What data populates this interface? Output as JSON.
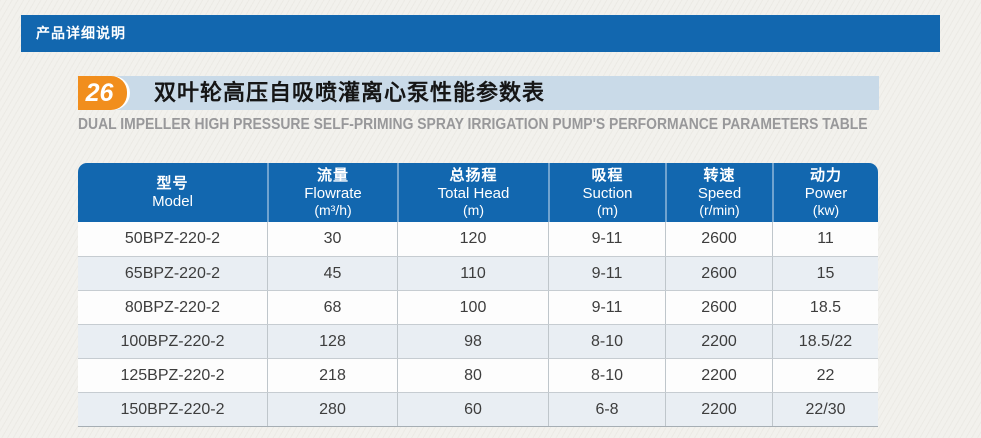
{
  "colors": {
    "primary_blue": "#1267af",
    "accent_orange": "#f18e1d",
    "title_bar_bg": "#c9dae8",
    "alt_row_bg": "#e9eef3",
    "subtitle_gray": "#98989a"
  },
  "top_bar": {
    "title": "产品详细说明"
  },
  "section": {
    "badge_number": "26",
    "title_cn": "双叶轮高压自吸喷灌离心泵性能参数表",
    "subtitle_en": "DUAL IMPELLER HIGH PRESSURE SELF-PRIMING SPRAY IRRIGATION PUMP'S PERFORMANCE PARAMETERS TABLE"
  },
  "chart_data": {
    "type": "table",
    "title": "双叶轮高压自吸喷灌离心泵性能参数表",
    "columns": [
      {
        "cn": "型号",
        "en": "Model",
        "unit": ""
      },
      {
        "cn": "流量",
        "en": "Flowrate",
        "unit": "(m³/h)"
      },
      {
        "cn": "总扬程",
        "en": "Total Head",
        "unit": "(m)"
      },
      {
        "cn": "吸程",
        "en": "Suction",
        "unit": "(m)"
      },
      {
        "cn": "转速",
        "en": "Speed",
        "unit": "(r/min)"
      },
      {
        "cn": "动力",
        "en": "Power",
        "unit": "(kw)"
      }
    ],
    "rows": [
      [
        "50BPZ-220-2",
        "30",
        "120",
        "9-11",
        "2600",
        "11"
      ],
      [
        "65BPZ-220-2",
        "45",
        "110",
        "9-11",
        "2600",
        "15"
      ],
      [
        "80BPZ-220-2",
        "68",
        "100",
        "9-11",
        "2600",
        "18.5"
      ],
      [
        "100BPZ-220-2",
        "128",
        "98",
        "8-10",
        "2200",
        "18.5/22"
      ],
      [
        "125BPZ-220-2",
        "218",
        "80",
        "8-10",
        "2200",
        "22"
      ],
      [
        "150BPZ-220-2",
        "280",
        "60",
        "6-8",
        "2200",
        "22/30"
      ]
    ]
  }
}
